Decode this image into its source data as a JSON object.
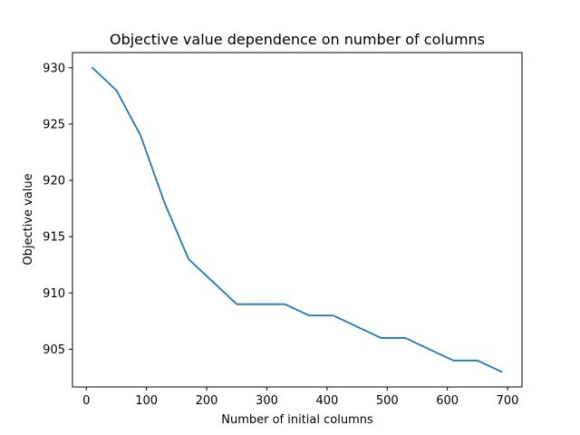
{
  "chart_data": {
    "type": "line",
    "title": "Objective value dependence on number of columns",
    "xlabel": "Number of initial columns",
    "ylabel": "Objective value",
    "xlim": [
      -23,
      724
    ],
    "ylim": [
      901.65,
      931.35
    ],
    "xticks": [
      0,
      100,
      200,
      300,
      400,
      500,
      600,
      700
    ],
    "yticks": [
      905,
      910,
      915,
      920,
      925,
      930
    ],
    "grid": false,
    "series": [
      {
        "color": "#1f77b4",
        "x": [
          10,
          50,
          90,
          130,
          170,
          210,
          250,
          290,
          330,
          370,
          410,
          450,
          490,
          530,
          570,
          610,
          650,
          690
        ],
        "y": [
          930,
          928,
          924,
          918,
          913,
          911,
          909,
          909,
          909,
          908,
          908,
          907,
          906,
          906,
          905,
          904,
          904,
          903
        ]
      }
    ]
  }
}
